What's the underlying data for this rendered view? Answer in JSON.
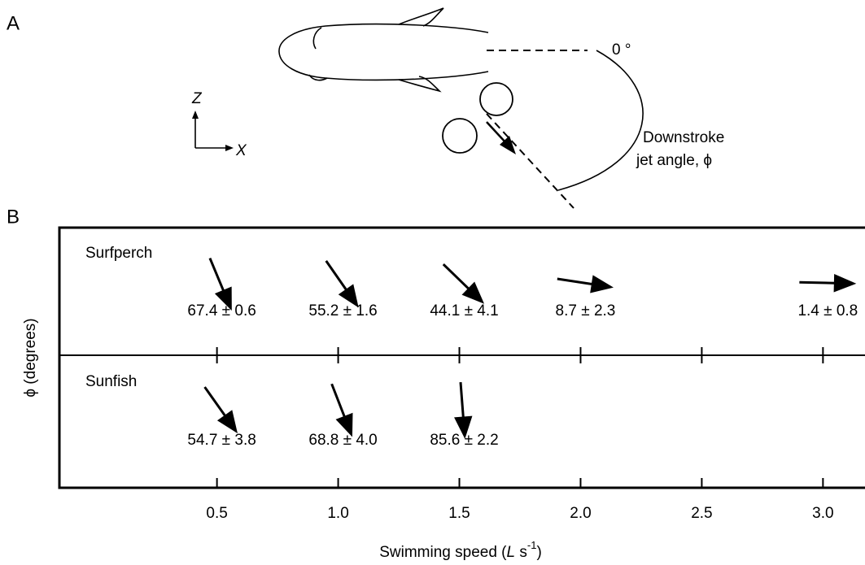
{
  "panel_a": {
    "panel_label": "A",
    "zero_label": "0 °",
    "angle_label_line1": "Downstroke",
    "angle_label_line2": "jet angle, ϕ",
    "z_axis": "Z",
    "x_axis": "X"
  },
  "chart_data": {
    "type": "arrow",
    "panel_label": "B",
    "x_label": {
      "prefix": "Swimming speed (",
      "italic": "L",
      "unit": " s",
      "exponent": "-1",
      "suffix": ")"
    },
    "y_label": "ϕ (degrees)",
    "xlim": [
      -0.15,
      3.17
    ],
    "xticks": [
      0.5,
      {
        "value": 1,
        "label": "1.0"
      },
      1.5,
      {
        "value": 2,
        "label": "2.0"
      },
      2.5,
      {
        "value": 3,
        "label": "3.0"
      }
    ],
    "series": [
      {
        "name": "Surfperch",
        "color": "#000000",
        "x": [
          0.5,
          1,
          1.5,
          2,
          3
        ],
        "values": [
          67.4,
          55.2,
          44.1,
          8.7,
          1.4
        ],
        "errors": [
          0.6,
          1.6,
          4.1,
          2.3,
          0.8
        ],
        "value_labels": [
          "67.4 ± 0.6",
          "55.2 ± 1.6",
          "44.1 ± 4.1",
          "8.7 ± 2.3",
          "1.4 ± 0.8"
        ]
      },
      {
        "name": "Sunfish",
        "color": "#000000",
        "x": [
          0.5,
          1,
          1.5
        ],
        "values": [
          54.7,
          68.8,
          85.6
        ],
        "errors": [
          3.8,
          4.0,
          2.2
        ],
        "value_labels": [
          "54.7 ± 3.8",
          "68.8 ± 4.0",
          "85.6 ± 2.2"
        ]
      }
    ]
  }
}
